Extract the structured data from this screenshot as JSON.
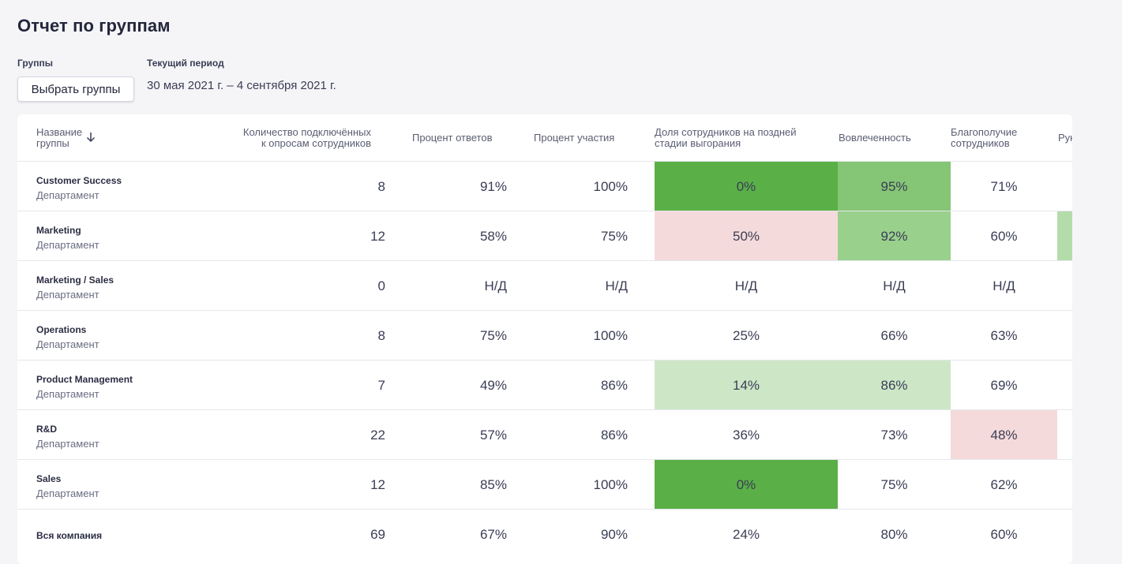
{
  "page_title": "Отчет по группам",
  "filters": {
    "groups_label": "Группы",
    "select_groups_button": "Выбрать группы",
    "period_label": "Текущий период",
    "period_value": "30 мая 2021 г. – 4 сентября 2021 г."
  },
  "table": {
    "headers": {
      "name_line1": "Название",
      "name_line2": "группы",
      "sort_icon": "arrow-down-icon",
      "count_line1": "Количество подключённых",
      "count_line2": "к опросам сотрудников",
      "response_rate": "Процент ответов",
      "participation": "Процент участия",
      "burnout_line1": "Доля сотрудников на поздней",
      "burnout_line2": "стадии выгорания",
      "engagement": "Вовлеченность",
      "wellbeing_line1": "Благополучие",
      "wellbeing_line2": "сотрудников",
      "leadership_partial": "Рук"
    },
    "rows": [
      {
        "name": "Customer Success",
        "type": "Департамент",
        "count": "8",
        "response": "91%",
        "participation": "100%",
        "burnout": "0%",
        "engagement": "95%",
        "wellbeing": "71%"
      },
      {
        "name": "Marketing",
        "type": "Департамент",
        "count": "12",
        "response": "58%",
        "participation": "75%",
        "burnout": "50%",
        "engagement": "92%",
        "wellbeing": "60%"
      },
      {
        "name": "Marketing / Sales",
        "type": "Департамент",
        "count": "0",
        "response": "Н/Д",
        "participation": "Н/Д",
        "burnout": "Н/Д",
        "engagement": "Н/Д",
        "wellbeing": "Н/Д"
      },
      {
        "name": "Operations",
        "type": "Департамент",
        "count": "8",
        "response": "75%",
        "participation": "100%",
        "burnout": "25%",
        "engagement": "66%",
        "wellbeing": "63%"
      },
      {
        "name": "Product Management",
        "type": "Департамент",
        "count": "7",
        "response": "49%",
        "participation": "86%",
        "burnout": "14%",
        "engagement": "86%",
        "wellbeing": "69%"
      },
      {
        "name": "R&D",
        "type": "Департамент",
        "count": "22",
        "response": "57%",
        "participation": "86%",
        "burnout": "36%",
        "engagement": "73%",
        "wellbeing": "48%"
      },
      {
        "name": "Sales",
        "type": "Департамент",
        "count": "12",
        "response": "85%",
        "participation": "100%",
        "burnout": "0%",
        "engagement": "75%",
        "wellbeing": "62%"
      },
      {
        "name": "Вся компания",
        "type": "",
        "count": "69",
        "response": "67%",
        "participation": "90%",
        "burnout": "24%",
        "engagement": "80%",
        "wellbeing": "60%"
      }
    ]
  },
  "colors": {
    "strong_positive": "#5ab047",
    "positive": "#85c576",
    "mild_positive": "#cde7c6",
    "negative": "#f5dadb"
  }
}
